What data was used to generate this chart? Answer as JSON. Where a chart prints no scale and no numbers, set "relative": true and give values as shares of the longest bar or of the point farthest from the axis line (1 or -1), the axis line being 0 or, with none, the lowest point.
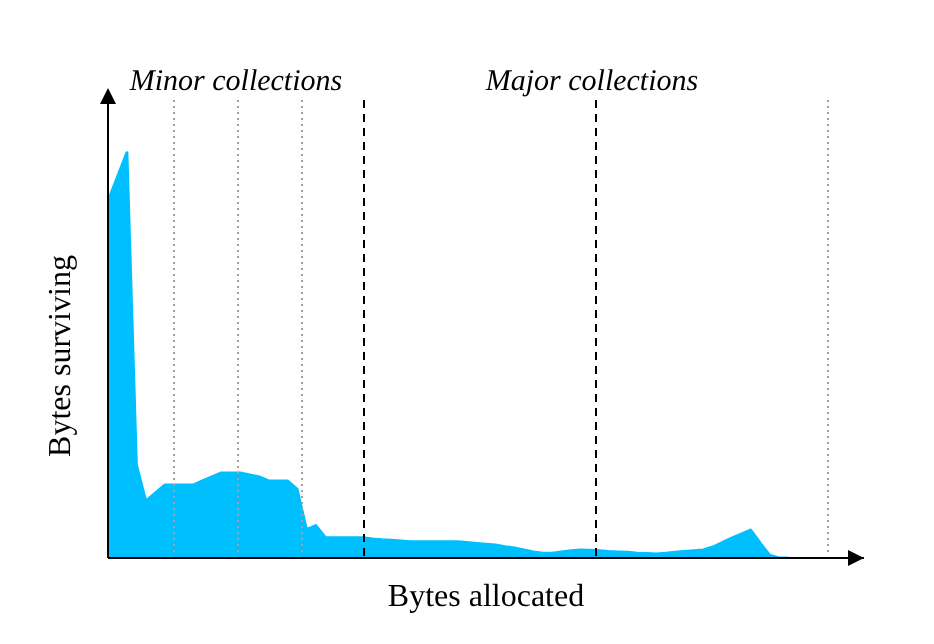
{
  "chart_data": {
    "type": "area",
    "relative": true,
    "xlabel": "Bytes allocated",
    "ylabel": "Bytes surviving",
    "annotations": [
      "Minor collections",
      "Major collections"
    ],
    "legend": false,
    "grid": false,
    "categories": [
      null,
      null,
      null,
      null,
      null,
      null,
      null,
      null,
      null,
      null,
      null,
      null,
      null,
      null,
      null,
      null,
      null,
      null,
      null,
      null,
      null,
      null,
      null,
      null,
      null,
      null,
      null,
      null,
      null,
      null,
      null,
      null,
      null,
      null,
      null,
      null,
      null,
      null,
      null,
      null,
      null,
      null,
      null,
      null,
      null,
      null,
      null,
      null,
      null,
      null,
      null,
      null,
      null,
      null,
      null,
      null,
      null,
      null,
      null,
      null,
      null,
      null,
      null,
      null,
      null,
      null,
      null,
      null,
      null,
      null,
      null,
      null,
      null,
      null,
      null,
      null,
      null,
      null,
      null,
      null,
      null
    ],
    "series": [
      {
        "color": "#00bfff",
        "values": [
          0.88,
          0.94,
          1,
          0.23,
          0.14,
          0.16,
          0.18,
          0.18,
          0.18,
          0.18,
          0.19,
          0.2,
          0.21,
          0.21,
          0.21,
          0.205,
          0.2,
          0.19,
          0.19,
          0.19,
          0.17,
          0.07,
          0.08,
          0.05,
          0.05,
          0.05,
          0.05,
          0.05,
          0.047,
          0.045,
          0.044,
          0.042,
          0.04,
          0.04,
          0.04,
          0.04,
          0.04,
          0.04,
          0.038,
          0.036,
          0.034,
          0.032,
          0.028,
          0.025,
          0.02,
          0.015,
          0.012,
          0.012,
          0.015,
          0.018,
          0.02,
          0.019,
          0.018,
          0.016,
          0.015,
          0.014,
          0.012,
          0.011,
          0.01,
          0.012,
          0.014,
          0.016,
          0.018,
          0.02,
          0.027,
          0.038,
          0.049,
          0.059,
          0.069,
          0.037,
          0.007,
          0,
          0,
          null,
          null,
          null,
          null,
          null,
          null,
          null,
          null
        ]
      }
    ]
  }
}
